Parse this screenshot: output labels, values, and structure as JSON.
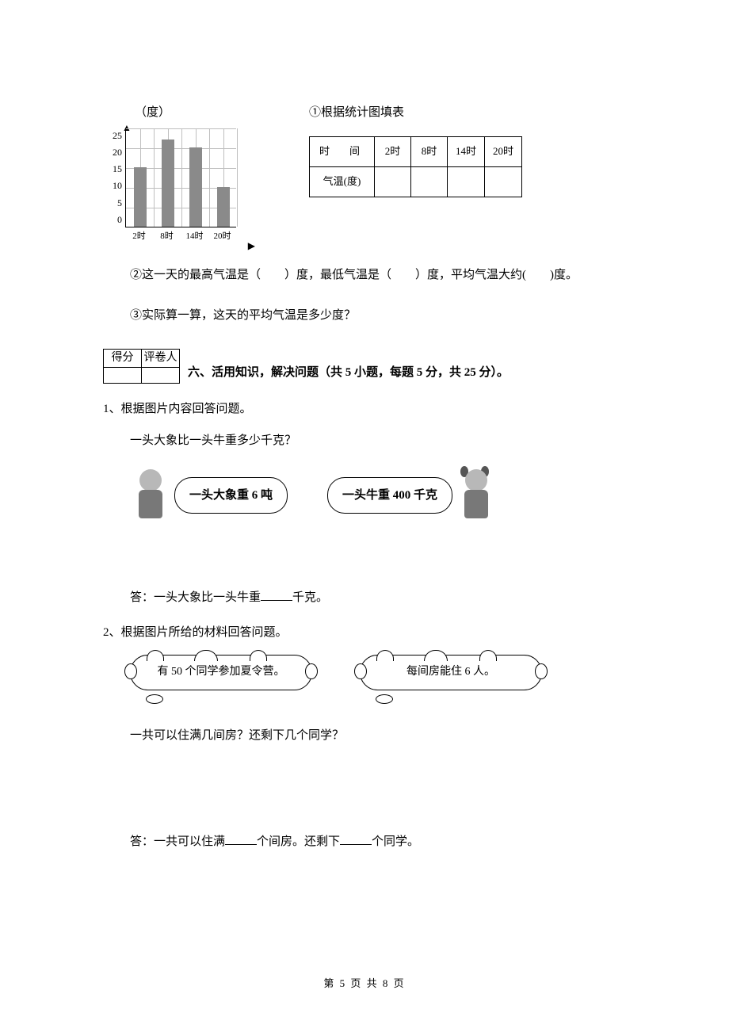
{
  "chart": {
    "type": "bar",
    "unit_label": "（度）",
    "y_ticks": [
      "25",
      "20",
      "15",
      "10",
      "5",
      "0"
    ],
    "categories": [
      "2时",
      "8时",
      "14时",
      "20时"
    ],
    "values": [
      15,
      22,
      20,
      10
    ],
    "ylim_max": 25,
    "bar_color": "#8a8a8a",
    "grid_color": "#bfbfbf",
    "bg_color": "#ffffff"
  },
  "q1": {
    "title": "①根据统计图填表",
    "table_headers": [
      "时　间",
      "2时",
      "8时",
      "14时",
      "20时"
    ],
    "row_label": "气温(度)"
  },
  "q2": "②这一天的最高气温是（　　）度，最低气温是（　　）度，平均气温大约(　　)度。",
  "q3": "③实际算一算，这天的平均气温是多少度？",
  "score_labels": [
    "得分",
    "评卷人"
  ],
  "section6_title": "六、活用知识，解决问题（共 5 小题，每题 5 分，共 25 分）。",
  "p1": {
    "num": "1、根据图片内容回答问题。",
    "sub": "一头大象比一头牛重多少千克？",
    "bubble_left": "一头大象重 6 吨",
    "bubble_right": "一头牛重 400 千克",
    "ans_prefix": "答：一头大象比一头牛重",
    "ans_suffix": "千克。"
  },
  "p2": {
    "num": "2、根据图片所给的材料回答问题。",
    "cloud_left": "有 50 个同学参加夏令营。",
    "cloud_right": "每间房能住 6 人。",
    "sub": "一共可以住满几间房？还剩下几个同学？",
    "ans_prefix": "答：一共可以住满",
    "ans_mid": "个间房。还剩下",
    "ans_suffix": "个同学。"
  },
  "footer": "第 5 页 共 8 页"
}
